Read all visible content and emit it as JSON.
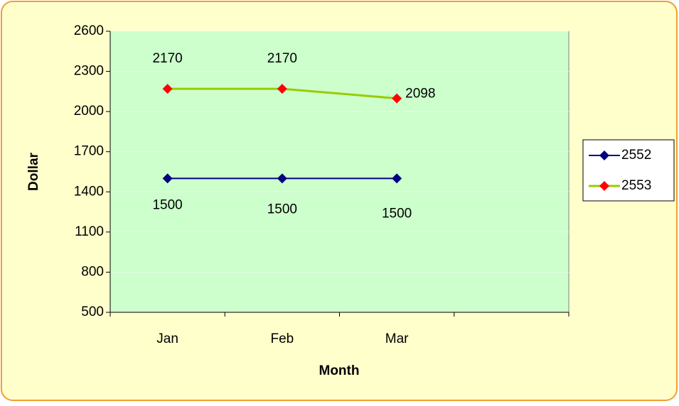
{
  "chart_data": {
    "type": "line",
    "x_label": "Month",
    "y_label": "Dollar",
    "categories": [
      "Jan",
      "Feb",
      "Mar",
      null
    ],
    "series": [
      {
        "name": "2552",
        "color": "#000080",
        "marker_color": "#000080",
        "values": [
          1500,
          1500,
          1500,
          null
        ]
      },
      {
        "name": "2553",
        "color": "#99cc00",
        "marker_color": "#ff0000",
        "values": [
          2170,
          2170,
          2098,
          null
        ]
      }
    ],
    "ylim": [
      500,
      2600
    ],
    "yticks": [
      500,
      800,
      1100,
      1400,
      1700,
      2000,
      2300,
      2600
    ],
    "grid": true,
    "legend": "right",
    "data_labels": true
  }
}
